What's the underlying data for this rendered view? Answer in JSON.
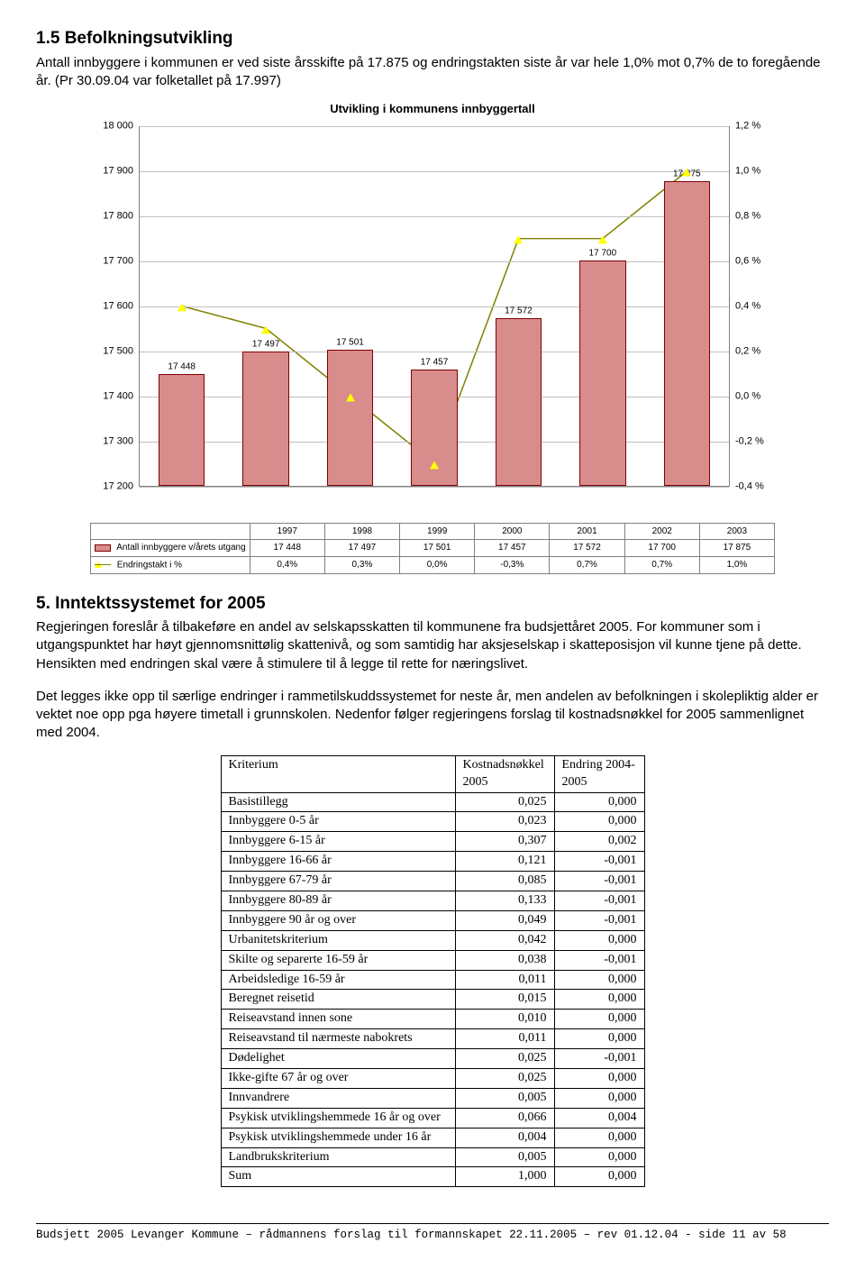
{
  "section1": {
    "heading": "1.5   Befolkningsutvikling",
    "body": "Antall innbyggere i kommunen er ved siste årsskifte på 17.875 og endringstakten siste år var hele 1,0% mot 0,7% de to foregående år. (Pr 30.09.04 var folketallet på 17.997)"
  },
  "chart": {
    "title": "Utvikling i kommunens innbyggertall",
    "y_left": {
      "min": 17200,
      "max": 18000,
      "step": 100
    },
    "y_right_labels": [
      "-0,4 %",
      "-0,2 %",
      "0,0 %",
      "0,2 %",
      "0,4 %",
      "0,6 %",
      "0,8 %",
      "1,0 %",
      "1,2 %"
    ],
    "years": [
      "1997",
      "1998",
      "1999",
      "2000",
      "2001",
      "2002",
      "2003"
    ],
    "bars": {
      "values": [
        17448,
        17497,
        17501,
        17457,
        17572,
        17700,
        17875
      ],
      "labels": [
        "17 448",
        "17 497",
        "17 501",
        "17 457",
        "17 572",
        "17 700",
        "17 875"
      ],
      "color": "#d98c8c",
      "border": "#800000"
    },
    "line": {
      "values_pct": [
        0.4,
        0.3,
        0.0,
        -0.3,
        0.7,
        0.7,
        1.0
      ],
      "color": "#808000",
      "marker_color": "#ffff00"
    },
    "table": {
      "row1_label": "Antall innbyggere v/årets utgang",
      "row1": [
        "17 448",
        "17 497",
        "17 501",
        "17 457",
        "17 572",
        "17 700",
        "17 875"
      ],
      "row2_label": "Endringstakt i %",
      "row2": [
        "0,4%",
        "0,3%",
        "0,0%",
        "-0,3%",
        "0,7%",
        "0,7%",
        "1,0%"
      ]
    }
  },
  "section2": {
    "heading": "5. Inntektssystemet for 2005",
    "p1": "Regjeringen foreslår å tilbakeføre en andel av selskapsskatten til kommunene fra budsjettåret 2005. For kommuner som i utgangspunktet har høyt gjennomsnittølig skattenivå, og som samtidig har aksjeselskap i skatteposisjon vil kunne tjene på dette. Hensikten med endringen skal være å stimulere til å legge til rette for næringslivet.",
    "p2": "Det legges ikke opp til særlige endringer i rammetilskuddssystemet for neste år, men andelen av befolkningen i skolepliktig alder er vektet noe opp pga høyere timetall i grunnskolen. Nedenfor følger regjeringens forslag til kostnadsnøkkel for 2005 sammenlignet med 2004."
  },
  "costTable": {
    "head": [
      "Kriterium",
      "Kostnadsnøkkel 2005",
      "Endring 2004-2005"
    ],
    "rows": [
      [
        "Basistillegg",
        "0,025",
        "0,000"
      ],
      [
        "Innbyggere 0-5 år",
        "0,023",
        "0,000"
      ],
      [
        "Innbyggere 6-15 år",
        "0,307",
        "0,002"
      ],
      [
        "Innbyggere 16-66 år",
        "0,121",
        "-0,001"
      ],
      [
        "Innbyggere 67-79 år",
        "0,085",
        "-0,001"
      ],
      [
        "Innbyggere 80-89 år",
        "0,133",
        "-0,001"
      ],
      [
        "Innbyggere 90 år og over",
        "0,049",
        "-0,001"
      ],
      [
        "Urbanitetskriterium",
        "0,042",
        "0,000"
      ],
      [
        "Skilte og separerte 16-59 år",
        "0,038",
        "-0,001"
      ],
      [
        "Arbeidsledige 16-59 år",
        "0,011",
        "0,000"
      ],
      [
        "Beregnet reisetid",
        "0,015",
        "0,000"
      ],
      [
        "Reiseavstand innen sone",
        "0,010",
        "0,000"
      ],
      [
        "Reiseavstand til nærmeste nabokrets",
        "0,011",
        "0,000"
      ],
      [
        "Dødelighet",
        "0,025",
        "-0,001"
      ],
      [
        "Ikke-gifte 67 år og over",
        "0,025",
        "0,000"
      ],
      [
        "Innvandrere",
        "0,005",
        "0,000"
      ],
      [
        "Psykisk utviklingshemmede 16 år og over",
        "0,066",
        "0,004"
      ],
      [
        "Psykisk utviklingshemmede under 16 år",
        "0,004",
        "0,000"
      ],
      [
        "Landbrukskriterium",
        "0,005",
        "0,000"
      ],
      [
        "Sum",
        "1,000",
        "0,000"
      ]
    ]
  },
  "footer": "Budsjett 2005 Levanger Kommune – rådmannens forslag til formannskapet 22.11.2005 – rev 01.12.04 - side 11 av 58"
}
